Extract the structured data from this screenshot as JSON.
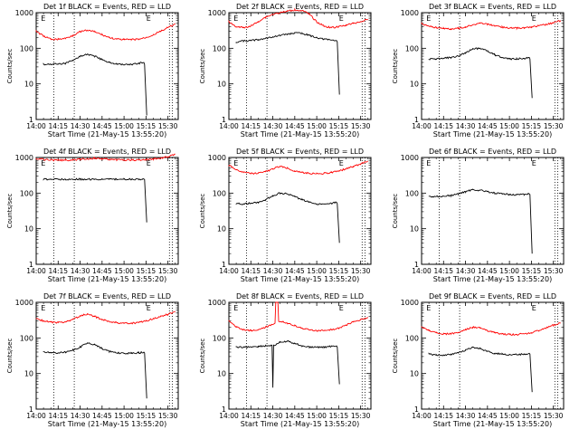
{
  "figure": {
    "common": {
      "ylabel": "Counts/sec",
      "xlabel": "Start Time (21-May-15 13:55:20)",
      "x_tick_labels": [
        "14:00",
        "14:15",
        "14:30",
        "14:45",
        "15:00",
        "15:15",
        "15:30"
      ],
      "y_tick_labels": [
        "1",
        "10",
        "100",
        "1000"
      ],
      "corner_marks": [
        "E",
        "E"
      ]
    },
    "colors": {
      "events": "#000000",
      "lld": "#ff0000",
      "axes": "#000000"
    }
  },
  "chart_data": [
    {
      "type": "line",
      "title": "Det 1f BLACK = Events, RED = LLD",
      "x_unit": "minutes after 14:00",
      "xlim": [
        0,
        97
      ],
      "ylim": [
        1,
        1000
      ],
      "y_scale": "log",
      "markers": [
        12,
        26,
        91,
        93
      ],
      "series": [
        {
          "name": "Events",
          "color": "#000000",
          "x": [
            5,
            10,
            15,
            20,
            25,
            30,
            35,
            40,
            45,
            50,
            55,
            60,
            65,
            70,
            73.5,
            74,
            75.5
          ],
          "y": [
            35,
            36,
            36,
            38,
            45,
            60,
            68,
            60,
            48,
            40,
            36,
            34,
            35,
            38,
            40,
            35,
            1.3
          ]
        },
        {
          "name": "LLD",
          "color": "#ff0000",
          "x": [
            0,
            5,
            10,
            15,
            20,
            25,
            30,
            35,
            40,
            45,
            50,
            55,
            60,
            65,
            70,
            75,
            80,
            85,
            90,
            95
          ],
          "y": [
            300,
            220,
            180,
            180,
            190,
            230,
            290,
            320,
            290,
            240,
            200,
            180,
            175,
            175,
            180,
            200,
            240,
            300,
            380,
            480
          ]
        }
      ]
    },
    {
      "type": "line",
      "title": "Det 2f BLACK = Events, RED = LLD",
      "x_unit": "minutes after 14:00",
      "xlim": [
        0,
        97
      ],
      "ylim": [
        1,
        1000
      ],
      "y_scale": "log",
      "markers": [
        12,
        26,
        91,
        93
      ],
      "series": [
        {
          "name": "Events",
          "color": "#000000",
          "x": [
            5,
            10,
            15,
            20,
            25,
            30,
            35,
            40,
            45,
            50,
            55,
            60,
            65,
            70,
            73.5,
            74,
            75.5
          ],
          "y": [
            150,
            160,
            165,
            175,
            190,
            210,
            230,
            250,
            270,
            260,
            230,
            200,
            180,
            170,
            165,
            150,
            5
          ]
        },
        {
          "name": "LLD",
          "color": "#ff0000",
          "x": [
            0,
            5,
            10,
            15,
            20,
            25,
            30,
            35,
            40,
            45,
            50,
            55,
            60,
            65,
            70,
            75,
            80,
            85,
            90,
            95
          ],
          "y": [
            550,
            400,
            380,
            420,
            560,
            750,
            900,
            1000,
            1100,
            1200,
            1150,
            900,
            550,
            420,
            380,
            400,
            450,
            500,
            560,
            650
          ]
        }
      ]
    },
    {
      "type": "line",
      "title": "Det 3f BLACK = Events, RED = LLD",
      "x_unit": "minutes after 14:00",
      "xlim": [
        0,
        97
      ],
      "ylim": [
        1,
        1000
      ],
      "y_scale": "log",
      "markers": [
        12,
        26,
        91,
        93
      ],
      "series": [
        {
          "name": "Events",
          "color": "#000000",
          "x": [
            5,
            10,
            15,
            20,
            25,
            30,
            35,
            40,
            45,
            50,
            55,
            60,
            65,
            70,
            73.5,
            74,
            75.5
          ],
          "y": [
            50,
            50,
            52,
            55,
            60,
            75,
            95,
            100,
            85,
            65,
            55,
            50,
            50,
            52,
            55,
            50,
            4
          ]
        },
        {
          "name": "LLD",
          "color": "#ff0000",
          "x": [
            0,
            5,
            10,
            15,
            20,
            25,
            30,
            35,
            40,
            45,
            50,
            55,
            60,
            65,
            70,
            75,
            80,
            85,
            90,
            95
          ],
          "y": [
            500,
            420,
            380,
            360,
            350,
            360,
            400,
            460,
            500,
            480,
            430,
            390,
            370,
            370,
            380,
            400,
            430,
            470,
            520,
            600
          ]
        }
      ]
    },
    {
      "type": "line",
      "title": "Det 4f BLACK = Events, RED = LLD",
      "x_unit": "minutes after 14:00",
      "xlim": [
        0,
        97
      ],
      "ylim": [
        1,
        1000
      ],
      "y_scale": "log",
      "markers": [
        12,
        26,
        91,
        93
      ],
      "series": [
        {
          "name": "Events",
          "color": "#000000",
          "x": [
            5,
            10,
            15,
            20,
            25,
            30,
            35,
            40,
            45,
            50,
            55,
            60,
            65,
            70,
            73.5,
            74,
            75.5
          ],
          "y": [
            245,
            245,
            245,
            245,
            245,
            245,
            245,
            245,
            245,
            245,
            245,
            245,
            245,
            245,
            248,
            240,
            15
          ]
        },
        {
          "name": "LLD",
          "color": "#ff0000",
          "x": [
            0,
            5,
            10,
            15,
            20,
            25,
            30,
            35,
            40,
            45,
            50,
            55,
            60,
            65,
            70,
            75,
            80,
            85,
            90,
            95
          ],
          "y": [
            950,
            880,
            850,
            840,
            840,
            850,
            880,
            920,
            950,
            930,
            890,
            860,
            850,
            850,
            860,
            880,
            910,
            960,
            1050,
            1250
          ]
        }
      ]
    },
    {
      "type": "line",
      "title": "Det 5f BLACK = Events, RED = LLD",
      "x_unit": "minutes after 14:00",
      "xlim": [
        0,
        97
      ],
      "ylim": [
        1,
        1000
      ],
      "y_scale": "log",
      "markers": [
        12,
        26,
        91,
        93
      ],
      "series": [
        {
          "name": "Events",
          "color": "#000000",
          "x": [
            5,
            10,
            15,
            20,
            25,
            30,
            35,
            40,
            45,
            50,
            55,
            60,
            65,
            70,
            73.5,
            74,
            75.5
          ],
          "y": [
            50,
            50,
            52,
            55,
            65,
            85,
            100,
            95,
            80,
            65,
            55,
            50,
            50,
            52,
            55,
            50,
            4
          ]
        },
        {
          "name": "LLD",
          "color": "#ff0000",
          "x": [
            0,
            5,
            10,
            15,
            20,
            25,
            30,
            35,
            40,
            45,
            50,
            55,
            60,
            65,
            70,
            75,
            80,
            85,
            90,
            95
          ],
          "y": [
            600,
            450,
            380,
            350,
            360,
            400,
            480,
            560,
            500,
            420,
            380,
            360,
            350,
            360,
            380,
            420,
            480,
            560,
            660,
            800
          ]
        }
      ]
    },
    {
      "type": "line",
      "title": "Det 6f BLACK = Events, RED = LLD",
      "x_unit": "minutes after 14:00",
      "xlim": [
        0,
        97
      ],
      "ylim": [
        1,
        1000
      ],
      "y_scale": "log",
      "markers": [
        12,
        26,
        91,
        93
      ],
      "series": [
        {
          "name": "Events",
          "color": "#000000",
          "x": [
            5,
            10,
            15,
            20,
            25,
            30,
            35,
            40,
            45,
            50,
            55,
            60,
            65,
            70,
            73.5,
            74,
            75.5
          ],
          "y": [
            80,
            80,
            82,
            85,
            95,
            110,
            125,
            120,
            110,
            100,
            95,
            92,
            90,
            92,
            95,
            90,
            2
          ]
        }
      ]
    },
    {
      "type": "line",
      "title": "Det 7f BLACK = Events, RED = LLD",
      "x_unit": "minutes after 14:00",
      "xlim": [
        0,
        97
      ],
      "ylim": [
        1,
        1000
      ],
      "y_scale": "log",
      "markers": [
        12,
        26,
        91,
        93
      ],
      "series": [
        {
          "name": "Events",
          "color": "#000000",
          "x": [
            5,
            10,
            15,
            20,
            25,
            30,
            35,
            40,
            45,
            50,
            55,
            60,
            65,
            70,
            73.5,
            74,
            75.5
          ],
          "y": [
            40,
            38,
            38,
            40,
            45,
            55,
            72,
            65,
            50,
            42,
            38,
            37,
            37,
            38,
            40,
            38,
            2
          ]
        },
        {
          "name": "LLD",
          "color": "#ff0000",
          "x": [
            0,
            5,
            10,
            15,
            20,
            25,
            30,
            35,
            40,
            45,
            50,
            55,
            60,
            65,
            70,
            75,
            80,
            85,
            90,
            95
          ],
          "y": [
            350,
            300,
            280,
            270,
            280,
            330,
            420,
            460,
            400,
            330,
            290,
            270,
            260,
            260,
            270,
            300,
            350,
            400,
            460,
            550
          ]
        }
      ]
    },
    {
      "type": "line",
      "title": "Det 8f BLACK = Events, RED = LLD",
      "x_unit": "minutes after 14:00",
      "xlim": [
        0,
        97
      ],
      "ylim": [
        1,
        1000
      ],
      "y_scale": "log",
      "markers": [
        12,
        26,
        91,
        93
      ],
      "series": [
        {
          "name": "Events",
          "color": "#000000",
          "x": [
            5,
            10,
            15,
            20,
            25,
            29.5,
            30,
            30.5,
            35,
            40,
            45,
            50,
            55,
            60,
            65,
            70,
            73.5,
            74,
            75.5
          ],
          "y": [
            55,
            55,
            56,
            58,
            60,
            62,
            4,
            60,
            75,
            80,
            70,
            60,
            55,
            55,
            55,
            58,
            60,
            55,
            5
          ]
        },
        {
          "name": "LLD",
          "color": "#ff0000",
          "x": [
            0,
            5,
            10,
            15,
            20,
            25,
            31.5,
            32,
            33.5,
            34,
            40,
            45,
            50,
            55,
            60,
            65,
            70,
            75,
            80,
            85,
            90,
            95
          ],
          "y": [
            300,
            200,
            170,
            160,
            170,
            200,
            260,
            1000,
            1000,
            300,
            260,
            220,
            190,
            170,
            160,
            160,
            170,
            190,
            230,
            280,
            330,
            380
          ]
        }
      ]
    },
    {
      "type": "line",
      "title": "Det 9f BLACK = Events, RED = LLD",
      "x_unit": "minutes after 14:00",
      "xlim": [
        0,
        97
      ],
      "ylim": [
        1,
        1000
      ],
      "y_scale": "log",
      "markers": [
        12,
        26,
        91,
        93
      ],
      "series": [
        {
          "name": "Events",
          "color": "#000000",
          "x": [
            5,
            10,
            15,
            20,
            25,
            30,
            35,
            40,
            45,
            50,
            55,
            60,
            65,
            70,
            73.5,
            74,
            75.5
          ],
          "y": [
            35,
            33,
            33,
            35,
            38,
            45,
            55,
            50,
            42,
            37,
            35,
            34,
            34,
            35,
            37,
            35,
            3
          ]
        },
        {
          "name": "LLD",
          "color": "#ff0000",
          "x": [
            0,
            5,
            10,
            15,
            20,
            25,
            30,
            35,
            40,
            45,
            50,
            55,
            60,
            65,
            70,
            75,
            80,
            85,
            90,
            95
          ],
          "y": [
            200,
            160,
            140,
            130,
            130,
            140,
            170,
            200,
            190,
            160,
            140,
            130,
            125,
            125,
            130,
            140,
            160,
            190,
            230,
            260
          ]
        }
      ]
    }
  ]
}
